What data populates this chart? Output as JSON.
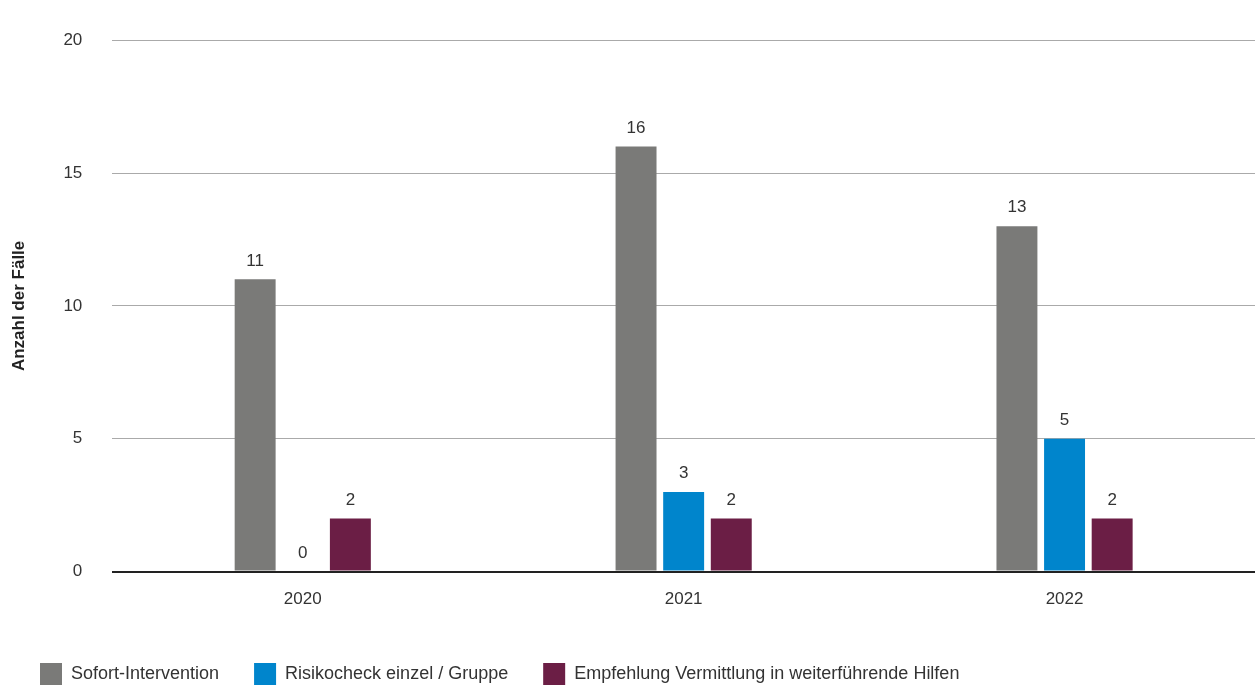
{
  "chart_data": {
    "type": "bar",
    "ylabel": "Anzahl der Fälle",
    "categories": [
      "2020",
      "2021",
      "2022"
    ],
    "series": [
      {
        "name": "Sofort-Intervention",
        "color": "#7a7a78",
        "values": [
          11,
          16,
          13
        ]
      },
      {
        "name": "Risikocheck einzel / Gruppe",
        "color": "#0085cc",
        "values": [
          0,
          3,
          5
        ]
      },
      {
        "name": "Empfehlung Vermittlung in weiterführende Hilfen",
        "color": "#6b1e45",
        "values": [
          2,
          2,
          2
        ]
      }
    ],
    "ylim": [
      0,
      20
    ],
    "yticks": [
      0,
      5,
      10,
      15,
      20
    ],
    "grid": "y",
    "legend": "bottom",
    "data_labels": true
  }
}
